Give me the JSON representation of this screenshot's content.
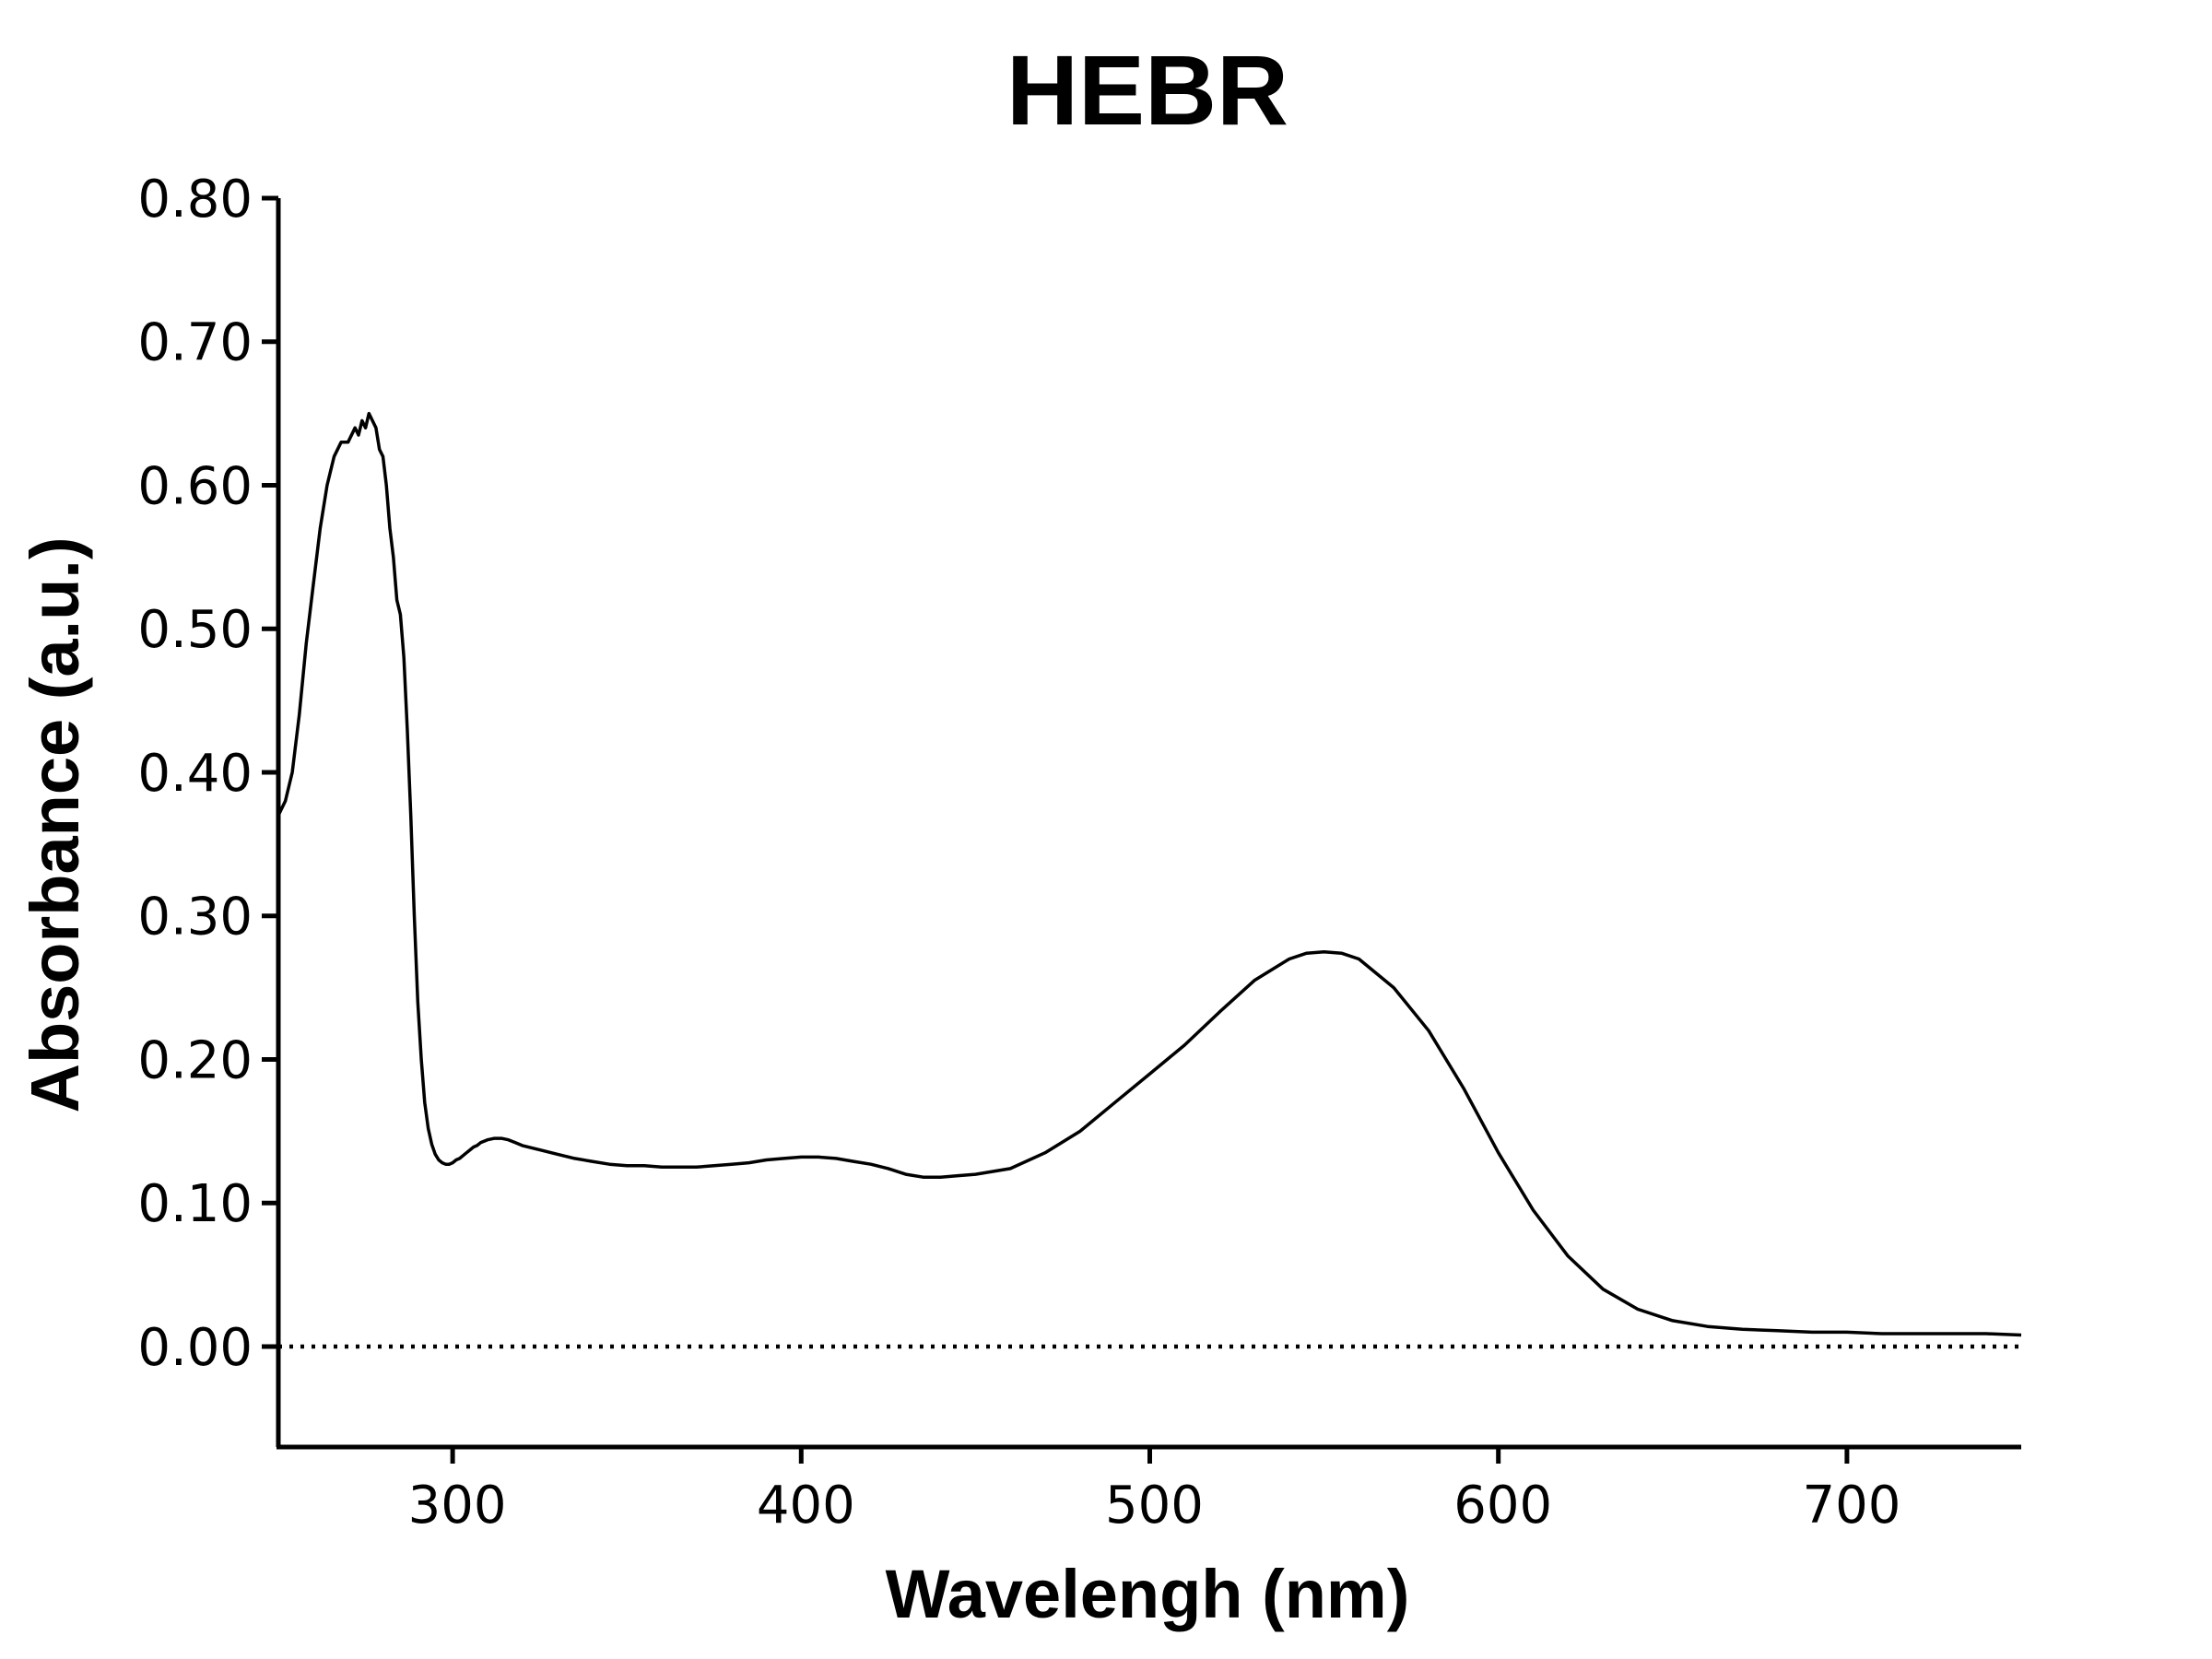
{
  "chart_data": {
    "type": "line",
    "title": "HEBR",
    "xlabel": "Wavelengh (nm)",
    "ylabel": "Absorbance (a.u.)",
    "xlim": [
      250,
      750
    ],
    "ylim": [
      -0.07,
      0.8
    ],
    "x_ticks": [
      300,
      400,
      500,
      600,
      700
    ],
    "x_tick_labels": [
      "300",
      "400",
      "500",
      "600",
      "700"
    ],
    "y_ticks": [
      0.0,
      0.1,
      0.2,
      0.3,
      0.4,
      0.5,
      0.6,
      0.7,
      0.8
    ],
    "y_tick_labels": [
      "0.00",
      "0.10",
      "0.20",
      "0.30",
      "0.40",
      "0.50",
      "0.60",
      "0.70",
      "0.80"
    ],
    "grid": false,
    "legend": "none",
    "reference_line": {
      "y": 0.0,
      "style": "dotted"
    },
    "series": [
      {
        "color": "#000000",
        "x": [
          250,
          252,
          254,
          256,
          258,
          260,
          262,
          264,
          266,
          268,
          270,
          272,
          273,
          274,
          275,
          276,
          277,
          278,
          279,
          280,
          281,
          282,
          283,
          284,
          285,
          286,
          287,
          288,
          289,
          290,
          291,
          292,
          293,
          294,
          295,
          296,
          297,
          298,
          299,
          300,
          301,
          302,
          303,
          304,
          305,
          306,
          307,
          308,
          310,
          312,
          314,
          316,
          318,
          320,
          325,
          330,
          335,
          340,
          345,
          350,
          355,
          360,
          365,
          370,
          375,
          380,
          385,
          390,
          395,
          400,
          405,
          410,
          415,
          420,
          425,
          430,
          435,
          440,
          445,
          450,
          455,
          460,
          470,
          480,
          490,
          500,
          510,
          520,
          530,
          540,
          545,
          550,
          555,
          560,
          570,
          580,
          590,
          600,
          610,
          620,
          630,
          640,
          650,
          660,
          670,
          680,
          690,
          700,
          710,
          720,
          730,
          740,
          750
        ],
        "y": [
          0.37,
          0.38,
          0.4,
          0.44,
          0.49,
          0.53,
          0.57,
          0.6,
          0.62,
          0.63,
          0.63,
          0.64,
          0.635,
          0.645,
          0.64,
          0.65,
          0.645,
          0.64,
          0.625,
          0.62,
          0.6,
          0.57,
          0.55,
          0.52,
          0.51,
          0.48,
          0.43,
          0.37,
          0.3,
          0.24,
          0.2,
          0.17,
          0.152,
          0.141,
          0.134,
          0.13,
          0.128,
          0.127,
          0.127,
          0.128,
          0.13,
          0.131,
          0.133,
          0.135,
          0.137,
          0.139,
          0.14,
          0.142,
          0.144,
          0.145,
          0.145,
          0.144,
          0.142,
          0.14,
          0.137,
          0.134,
          0.131,
          0.129,
          0.127,
          0.126,
          0.126,
          0.125,
          0.125,
          0.125,
          0.126,
          0.127,
          0.128,
          0.13,
          0.131,
          0.132,
          0.132,
          0.131,
          0.129,
          0.127,
          0.124,
          0.12,
          0.118,
          0.118,
          0.119,
          0.12,
          0.122,
          0.124,
          0.135,
          0.15,
          0.17,
          0.19,
          0.21,
          0.233,
          0.255,
          0.27,
          0.274,
          0.275,
          0.274,
          0.27,
          0.25,
          0.22,
          0.18,
          0.135,
          0.095,
          0.063,
          0.04,
          0.026,
          0.018,
          0.014,
          0.012,
          0.011,
          0.01,
          0.01,
          0.009,
          0.009,
          0.009,
          0.009,
          0.008
        ]
      }
    ]
  }
}
